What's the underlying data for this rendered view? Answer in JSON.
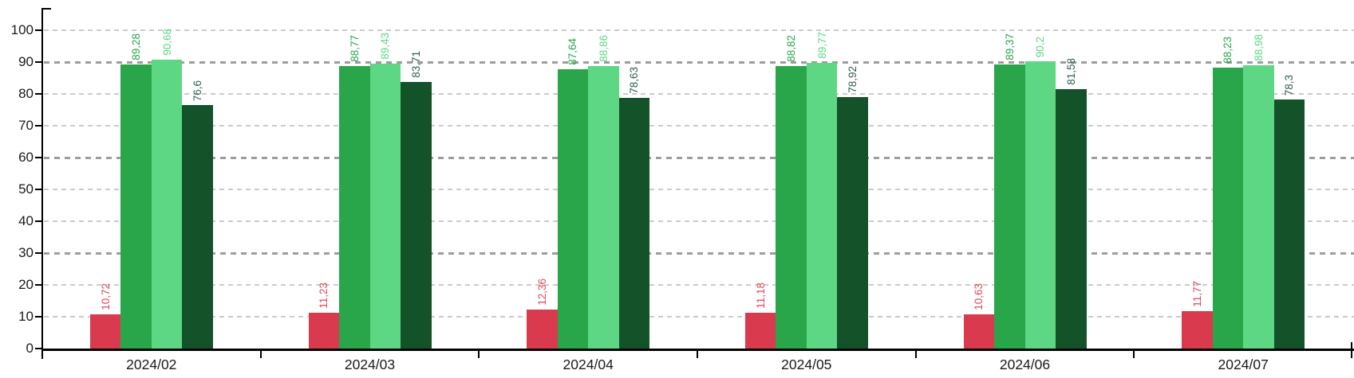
{
  "chart_data": {
    "type": "bar",
    "title": "",
    "xlabel": "",
    "ylabel": "",
    "legend": "none",
    "categories": [
      "2024/02",
      "2024/03",
      "2024/04",
      "2024/05",
      "2024/06",
      "2024/07"
    ],
    "series": [
      {
        "color": "#d93a4e",
        "label_color": "#db4a60",
        "values": [
          10.72,
          11.23,
          12.36,
          11.18,
          10.63,
          11.77
        ],
        "labels": [
          "10,72",
          "11,23",
          "12,36",
          "11,18",
          "10,63",
          "11,77"
        ]
      },
      {
        "color": "#2aa64a",
        "label_color": "#2aa64a",
        "values": [
          89.28,
          88.77,
          87.64,
          88.82,
          89.37,
          88.23
        ],
        "labels": [
          "89,28",
          "88,77",
          "87,64",
          "88,82",
          "89,37",
          "88,23"
        ]
      },
      {
        "color": "#5dd783",
        "label_color": "#5dd783",
        "values": [
          90.68,
          89.43,
          88.86,
          89.77,
          90.2,
          88.98
        ],
        "labels": [
          "90,68",
          "89,43",
          "88,86",
          "89,77",
          "90,2",
          "88,98"
        ]
      },
      {
        "color": "#14522a",
        "label_color": "#2e5f4c",
        "values": [
          76.6,
          83.71,
          78.63,
          78.92,
          81.58,
          78.3
        ],
        "labels": [
          "76,6",
          "83,71",
          "78,63",
          "78,92",
          "81,58",
          "78,3"
        ]
      }
    ],
    "y_axis": {
      "min": 0,
      "max": 100,
      "tick_step": 10,
      "tick_labels": [
        "0",
        "10",
        "20",
        "30",
        "40",
        "50",
        "60",
        "70",
        "80",
        "90",
        "100"
      ]
    },
    "grid": {
      "visible": true,
      "style": "dashed",
      "minor_color": "#cbcbcb",
      "major_color": "#9d9d9d",
      "major_every": 30
    },
    "axis_color": "#000000",
    "background": "#ffffff",
    "value_label_rotation": "vertical"
  }
}
